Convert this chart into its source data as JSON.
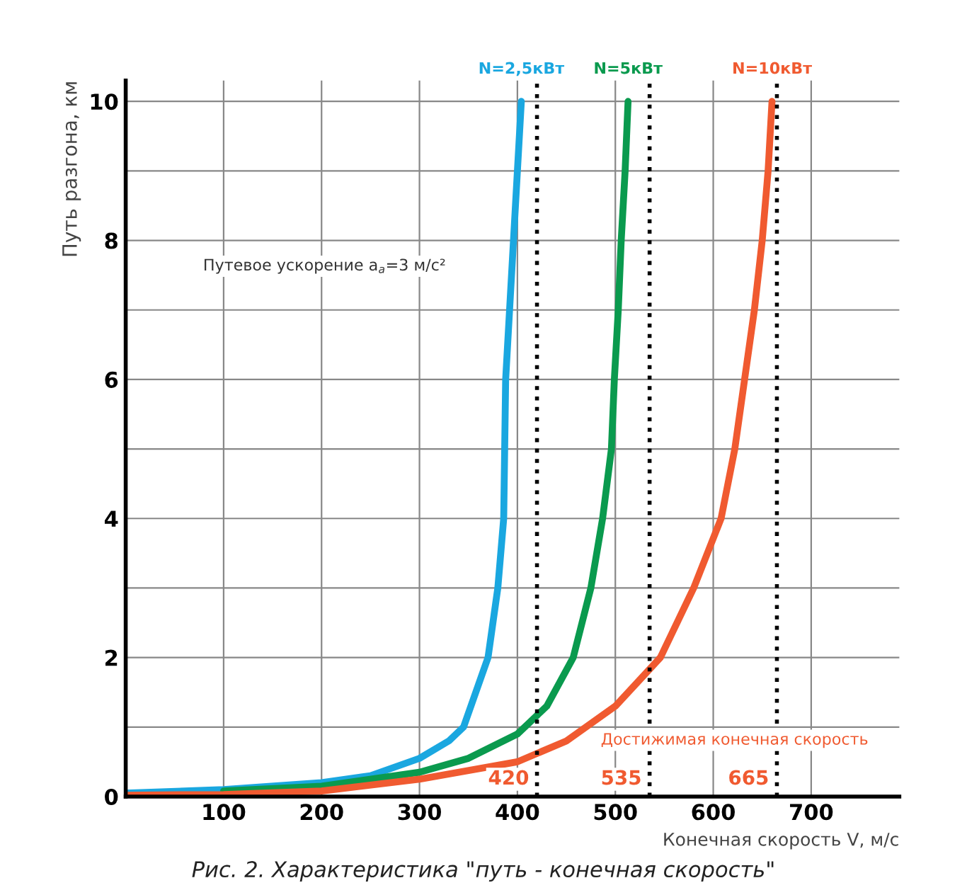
{
  "chart_data": {
    "type": "line",
    "xlabel": "Конечная скорость V, м/с",
    "ylabel": "Путь разгона, км",
    "xlim": [
      0,
      790
    ],
    "ylim": [
      0,
      10.3
    ],
    "xticks": [
      100,
      200,
      300,
      400,
      500,
      600,
      700
    ],
    "yticks": [
      0,
      {
        "value": 1,
        "label": null
      },
      2,
      {
        "value": 3,
        "label": null
      },
      4,
      {
        "value": 5,
        "label": null
      },
      6,
      {
        "value": 7,
        "label": null
      },
      8,
      {
        "value": 9,
        "label": null
      },
      10
    ],
    "grid": true,
    "legend": false,
    "marker": "none",
    "line_style": "solid",
    "series": [
      {
        "name": "N=2,5кВт",
        "color": "#1aa7e0",
        "x": [
          0,
          100,
          200,
          250,
          300,
          330,
          345,
          360,
          370,
          380,
          386,
          387,
          388,
          392,
          396,
          400,
          404
        ],
        "values": [
          0.05,
          0.1,
          0.2,
          0.3,
          0.55,
          0.8,
          1,
          1.6,
          2,
          3,
          4,
          5,
          6,
          7,
          8,
          9,
          10
        ]
      },
      {
        "name": "N=5кВт",
        "color": "#0a9a4e",
        "x": [
          100,
          200,
          300,
          350,
          400,
          430,
          457,
          475,
          487,
          496,
          499,
          503,
          506,
          510,
          513
        ],
        "values": [
          0.08,
          0.15,
          0.35,
          0.55,
          0.9,
          1.3,
          2,
          3,
          4,
          5,
          6,
          7,
          8,
          9,
          10
        ]
      },
      {
        "name": "N=10кВт",
        "color": "#f05a30",
        "x": [
          0,
          100,
          200,
          300,
          400,
          450,
          500,
          546,
          580,
          608,
          622,
          632,
          642,
          650,
          656,
          660
        ],
        "values": [
          0.02,
          0.03,
          0.08,
          0.25,
          0.5,
          0.8,
          1.3,
          2,
          3,
          4,
          5,
          6,
          7,
          8,
          9,
          10
        ]
      }
    ],
    "ref_lines": [
      {
        "axis": "x",
        "value": 420,
        "label": "420",
        "color": "#000000",
        "line_style": "dotted"
      },
      {
        "axis": "x",
        "value": 535,
        "label": "535",
        "color": "#000000",
        "line_style": "dotted"
      },
      {
        "axis": "x",
        "value": 665,
        "label": "665",
        "color": "#000000",
        "line_style": "dotted"
      }
    ],
    "annotations": [
      "Путевое ускорение a$_{a}$=3 м/с²",
      "Достижимая конечная скорость",
      "Рис. 2. Характеристика \"путь - конечная скорость\""
    ]
  }
}
